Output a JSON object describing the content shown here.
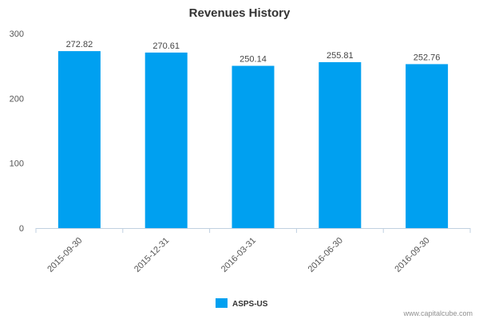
{
  "chart_data": {
    "type": "bar",
    "title": "Revenues History",
    "xlabel": "",
    "ylabel": "",
    "categories": [
      "2015-09-30",
      "2015-12-31",
      "2016-03-31",
      "2016-06-30",
      "2016-09-30"
    ],
    "series": [
      {
        "name": "ASPS-US",
        "values": [
          272.82,
          270.61,
          250.14,
          255.81,
          252.76
        ]
      }
    ],
    "data_labels": [
      "272.82",
      "270.61",
      "250.14",
      "255.81",
      "252.76"
    ],
    "yticks": [
      0,
      100,
      200,
      300
    ],
    "ylim": [
      0,
      300
    ],
    "legend_position": "bottom-center",
    "grid": false
  },
  "colors": {
    "bar": "#00a0f0",
    "axis": "#c0d0e0",
    "text": "#333333"
  },
  "credit": "www.capitalcube.com"
}
